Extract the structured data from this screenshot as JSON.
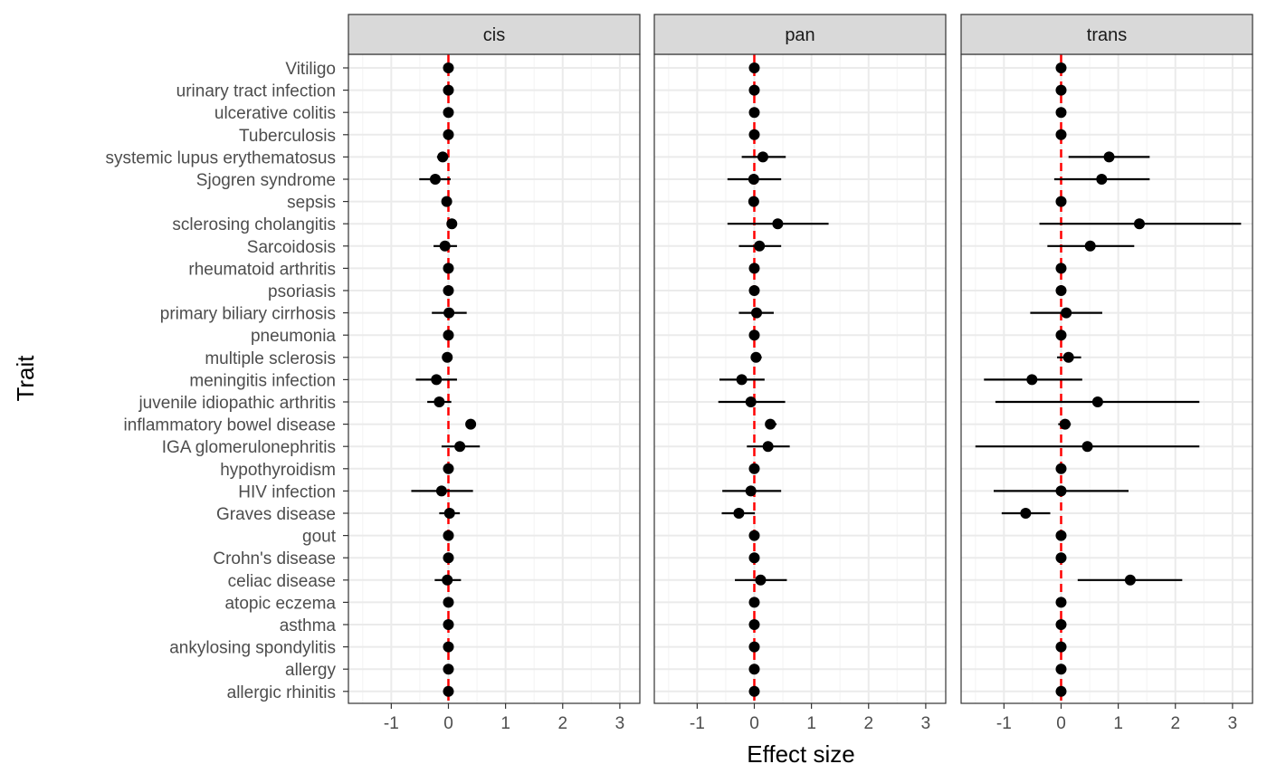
{
  "chart_data": {
    "type": "forest",
    "xlabel": "Effect size",
    "ylabel": "Trait",
    "xlim": [
      -1.75,
      3.35
    ],
    "x_ticks": [
      -1,
      0,
      1,
      2,
      3
    ],
    "x_tick_labels": [
      "-1",
      "0",
      "1",
      "2",
      "3"
    ],
    "reference_line": 0,
    "grid": true,
    "colors": {
      "point": "#000000",
      "errorbar": "#000000",
      "reference_line": "#ff0000",
      "strip_bg": "#d9d9d9",
      "panel_border": "#333333",
      "grid_major": "#ebebeb",
      "grid_minor": "#f5f5f5",
      "tick_label": "#4d4d4d"
    },
    "traits": [
      "Vitiligo",
      "urinary tract infection",
      "ulcerative colitis",
      "Tuberculosis",
      "systemic lupus erythematosus",
      "Sjogren syndrome",
      "sepsis",
      "sclerosing cholangitis",
      "Sarcoidosis",
      "rheumatoid arthritis",
      "psoriasis",
      "primary biliary cirrhosis",
      "pneumonia",
      "multiple sclerosis",
      "meningitis infection",
      "juvenile idiopathic arthritis",
      "inflammatory bowel disease",
      "IGA glomerulonephritis",
      "hypothyroidism",
      "HIV infection",
      "Graves disease",
      "gout",
      "Crohn's disease",
      "celiac disease",
      "atopic eczema",
      "asthma",
      "ankylosing spondylitis",
      "allergy",
      "allergic rhinitis"
    ],
    "panels": [
      {
        "name": "cis",
        "estimates": [
          0,
          0,
          0,
          0,
          -0.1,
          -0.23,
          -0.03,
          0.06,
          -0.06,
          0,
          0,
          0.01,
          0,
          -0.02,
          -0.21,
          -0.16,
          0.39,
          0.2,
          0,
          -0.12,
          0.02,
          0,
          0,
          -0.02,
          0,
          0,
          0,
          0,
          0
        ],
        "lower": [
          0,
          0,
          0,
          0,
          -0.2,
          -0.51,
          -0.06,
          -0.02,
          -0.26,
          0,
          0,
          -0.29,
          0,
          -0.04,
          -0.57,
          -0.37,
          0.39,
          -0.12,
          0,
          -0.65,
          -0.16,
          0,
          0,
          -0.24,
          0,
          0,
          0,
          0,
          0
        ],
        "upper": [
          0,
          0,
          0,
          0,
          0,
          0.04,
          0,
          0.14,
          0.15,
          0,
          0,
          0.32,
          0,
          0,
          0.15,
          0.05,
          0.39,
          0.55,
          0,
          0.43,
          0.2,
          0,
          0,
          0.22,
          0,
          0,
          0,
          0,
          0
        ]
      },
      {
        "name": "pan",
        "estimates": [
          0,
          0,
          0,
          0,
          0.15,
          -0.01,
          -0.01,
          0.41,
          0.09,
          0,
          0,
          0.04,
          0,
          0.03,
          -0.22,
          -0.06,
          0.28,
          0.24,
          0,
          -0.06,
          -0.27,
          0,
          0,
          0.11,
          0,
          0,
          0,
          0,
          0
        ],
        "lower": [
          0,
          0,
          0,
          0,
          -0.22,
          -0.47,
          -0.02,
          -0.47,
          -0.27,
          0,
          0,
          -0.27,
          0,
          -0.04,
          -0.61,
          -0.63,
          0.19,
          -0.13,
          0,
          -0.56,
          -0.57,
          0,
          0,
          -0.34,
          0,
          0,
          0,
          0,
          0
        ],
        "upper": [
          0,
          0,
          0,
          0,
          0.55,
          0.47,
          0,
          1.3,
          0.47,
          0,
          0,
          0.34,
          0,
          0.13,
          0.18,
          0.54,
          0.39,
          0.62,
          0,
          0.47,
          0.01,
          0,
          0,
          0.57,
          0,
          0,
          0,
          0,
          0
        ]
      },
      {
        "name": "trans",
        "estimates": [
          0,
          0,
          0,
          0,
          0.84,
          0.71,
          0,
          1.37,
          0.51,
          0,
          0,
          0.09,
          0,
          0.13,
          -0.51,
          0.64,
          0.07,
          0.46,
          0,
          0,
          -0.62,
          0,
          0,
          1.21,
          0,
          0,
          0,
          0,
          0
        ],
        "lower": [
          0,
          0,
          0,
          0,
          0.13,
          -0.12,
          -0.03,
          -0.38,
          -0.24,
          0,
          0,
          -0.54,
          0,
          -0.07,
          -1.35,
          -1.15,
          -0.05,
          -1.5,
          0,
          -1.18,
          -1.04,
          0,
          0,
          0.29,
          0,
          0,
          0,
          0,
          0
        ],
        "upper": [
          0,
          0,
          0,
          0,
          1.55,
          1.55,
          0.03,
          3.15,
          1.28,
          0,
          0,
          0.72,
          0,
          0.35,
          0.37,
          2.42,
          0.17,
          2.42,
          0,
          1.18,
          -0.19,
          0,
          0,
          2.12,
          0,
          0,
          0,
          0,
          0
        ]
      }
    ]
  }
}
